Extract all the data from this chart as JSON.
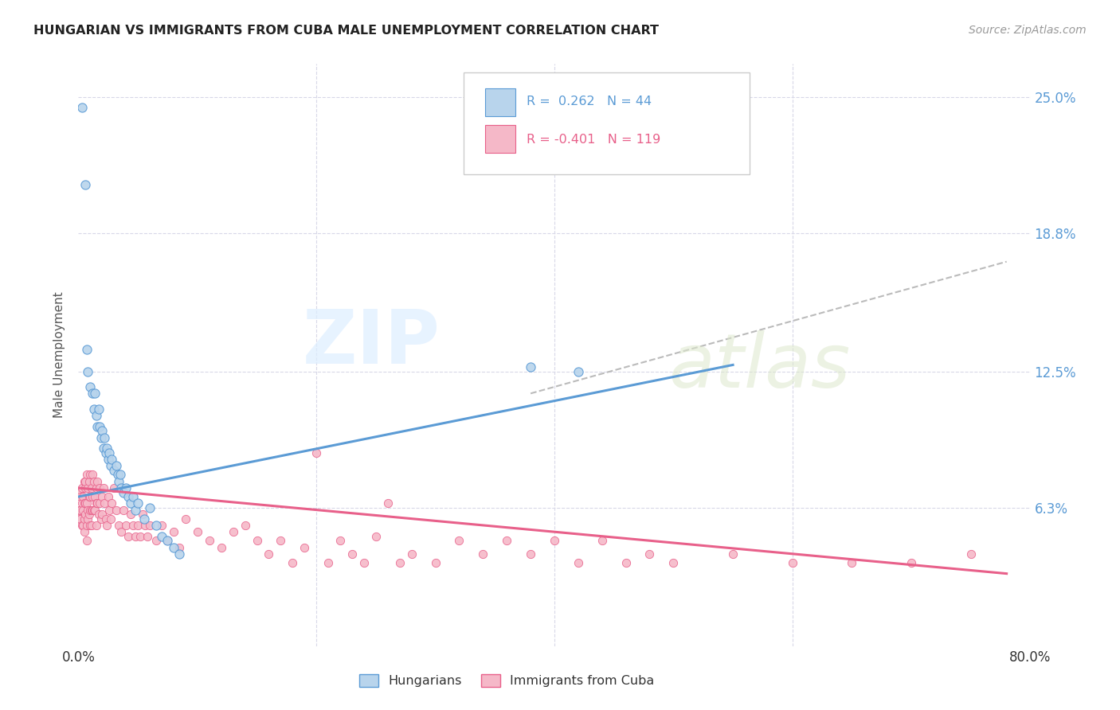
{
  "title": "HUNGARIAN VS IMMIGRANTS FROM CUBA MALE UNEMPLOYMENT CORRELATION CHART",
  "source": "Source: ZipAtlas.com",
  "ylabel": "Male Unemployment",
  "xlim": [
    0.0,
    0.8
  ],
  "ylim": [
    0.0,
    0.265
  ],
  "ytick_labels": [
    "6.3%",
    "12.5%",
    "18.8%",
    "25.0%"
  ],
  "ytick_values": [
    0.063,
    0.125,
    0.188,
    0.25
  ],
  "xtick_labels": [
    "0.0%",
    "80.0%"
  ],
  "xtick_values": [
    0.0,
    0.8
  ],
  "color_hungarian": "#b8d4ec",
  "color_cuba": "#f5b8c8",
  "color_line_hungarian": "#5b9bd5",
  "color_line_cuba": "#e8608a",
  "color_line_dashed": "#bbbbbb",
  "background_color": "#ffffff",
  "grid_color": "#d8d8e8",
  "hungarian_points": [
    [
      0.003,
      0.245
    ],
    [
      0.006,
      0.21
    ],
    [
      0.007,
      0.135
    ],
    [
      0.008,
      0.125
    ],
    [
      0.01,
      0.118
    ],
    [
      0.012,
      0.115
    ],
    [
      0.013,
      0.108
    ],
    [
      0.014,
      0.115
    ],
    [
      0.015,
      0.105
    ],
    [
      0.016,
      0.1
    ],
    [
      0.017,
      0.108
    ],
    [
      0.018,
      0.1
    ],
    [
      0.019,
      0.095
    ],
    [
      0.02,
      0.098
    ],
    [
      0.021,
      0.09
    ],
    [
      0.022,
      0.095
    ],
    [
      0.023,
      0.088
    ],
    [
      0.024,
      0.09
    ],
    [
      0.025,
      0.085
    ],
    [
      0.026,
      0.088
    ],
    [
      0.027,
      0.082
    ],
    [
      0.028,
      0.085
    ],
    [
      0.03,
      0.08
    ],
    [
      0.032,
      0.082
    ],
    [
      0.033,
      0.078
    ],
    [
      0.034,
      0.075
    ],
    [
      0.035,
      0.078
    ],
    [
      0.036,
      0.072
    ],
    [
      0.038,
      0.07
    ],
    [
      0.04,
      0.072
    ],
    [
      0.042,
      0.068
    ],
    [
      0.044,
      0.065
    ],
    [
      0.046,
      0.068
    ],
    [
      0.048,
      0.062
    ],
    [
      0.05,
      0.065
    ],
    [
      0.055,
      0.058
    ],
    [
      0.06,
      0.063
    ],
    [
      0.065,
      0.055
    ],
    [
      0.07,
      0.05
    ],
    [
      0.075,
      0.048
    ],
    [
      0.08,
      0.045
    ],
    [
      0.085,
      0.042
    ],
    [
      0.38,
      0.127
    ],
    [
      0.42,
      0.125
    ]
  ],
  "cuba_points": [
    [
      0.0,
      0.062
    ],
    [
      0.001,
      0.07
    ],
    [
      0.001,
      0.058
    ],
    [
      0.002,
      0.068
    ],
    [
      0.002,
      0.062
    ],
    [
      0.002,
      0.058
    ],
    [
      0.003,
      0.065
    ],
    [
      0.003,
      0.055
    ],
    [
      0.003,
      0.072
    ],
    [
      0.004,
      0.068
    ],
    [
      0.004,
      0.062
    ],
    [
      0.004,
      0.055
    ],
    [
      0.005,
      0.075
    ],
    [
      0.005,
      0.065
    ],
    [
      0.005,
      0.058
    ],
    [
      0.005,
      0.052
    ],
    [
      0.006,
      0.072
    ],
    [
      0.006,
      0.065
    ],
    [
      0.006,
      0.06
    ],
    [
      0.006,
      0.075
    ],
    [
      0.007,
      0.078
    ],
    [
      0.007,
      0.065
    ],
    [
      0.007,
      0.055
    ],
    [
      0.007,
      0.048
    ],
    [
      0.008,
      0.072
    ],
    [
      0.008,
      0.062
    ],
    [
      0.008,
      0.058
    ],
    [
      0.009,
      0.075
    ],
    [
      0.009,
      0.068
    ],
    [
      0.009,
      0.06
    ],
    [
      0.01,
      0.078
    ],
    [
      0.01,
      0.068
    ],
    [
      0.01,
      0.062
    ],
    [
      0.01,
      0.055
    ],
    [
      0.011,
      0.072
    ],
    [
      0.011,
      0.062
    ],
    [
      0.011,
      0.055
    ],
    [
      0.012,
      0.068
    ],
    [
      0.012,
      0.062
    ],
    [
      0.012,
      0.078
    ],
    [
      0.013,
      0.075
    ],
    [
      0.013,
      0.062
    ],
    [
      0.014,
      0.068
    ],
    [
      0.014,
      0.062
    ],
    [
      0.015,
      0.072
    ],
    [
      0.015,
      0.065
    ],
    [
      0.015,
      0.055
    ],
    [
      0.016,
      0.075
    ],
    [
      0.016,
      0.065
    ],
    [
      0.017,
      0.06
    ],
    [
      0.018,
      0.072
    ],
    [
      0.018,
      0.065
    ],
    [
      0.019,
      0.058
    ],
    [
      0.02,
      0.068
    ],
    [
      0.02,
      0.06
    ],
    [
      0.021,
      0.072
    ],
    [
      0.022,
      0.065
    ],
    [
      0.023,
      0.058
    ],
    [
      0.024,
      0.055
    ],
    [
      0.025,
      0.068
    ],
    [
      0.026,
      0.062
    ],
    [
      0.027,
      0.058
    ],
    [
      0.028,
      0.065
    ],
    [
      0.03,
      0.072
    ],
    [
      0.032,
      0.062
    ],
    [
      0.034,
      0.055
    ],
    [
      0.036,
      0.052
    ],
    [
      0.038,
      0.062
    ],
    [
      0.04,
      0.055
    ],
    [
      0.042,
      0.05
    ],
    [
      0.044,
      0.06
    ],
    [
      0.046,
      0.055
    ],
    [
      0.048,
      0.05
    ],
    [
      0.05,
      0.055
    ],
    [
      0.052,
      0.05
    ],
    [
      0.054,
      0.06
    ],
    [
      0.056,
      0.055
    ],
    [
      0.058,
      0.05
    ],
    [
      0.06,
      0.055
    ],
    [
      0.065,
      0.048
    ],
    [
      0.07,
      0.055
    ],
    [
      0.075,
      0.048
    ],
    [
      0.08,
      0.052
    ],
    [
      0.085,
      0.045
    ],
    [
      0.09,
      0.058
    ],
    [
      0.1,
      0.052
    ],
    [
      0.11,
      0.048
    ],
    [
      0.12,
      0.045
    ],
    [
      0.13,
      0.052
    ],
    [
      0.14,
      0.055
    ],
    [
      0.15,
      0.048
    ],
    [
      0.16,
      0.042
    ],
    [
      0.17,
      0.048
    ],
    [
      0.18,
      0.038
    ],
    [
      0.19,
      0.045
    ],
    [
      0.2,
      0.088
    ],
    [
      0.21,
      0.038
    ],
    [
      0.22,
      0.048
    ],
    [
      0.23,
      0.042
    ],
    [
      0.24,
      0.038
    ],
    [
      0.25,
      0.05
    ],
    [
      0.26,
      0.065
    ],
    [
      0.27,
      0.038
    ],
    [
      0.28,
      0.042
    ],
    [
      0.3,
      0.038
    ],
    [
      0.32,
      0.048
    ],
    [
      0.34,
      0.042
    ],
    [
      0.36,
      0.048
    ],
    [
      0.38,
      0.042
    ],
    [
      0.4,
      0.048
    ],
    [
      0.42,
      0.038
    ],
    [
      0.44,
      0.048
    ],
    [
      0.46,
      0.038
    ],
    [
      0.48,
      0.042
    ],
    [
      0.5,
      0.038
    ],
    [
      0.55,
      0.042
    ],
    [
      0.6,
      0.038
    ],
    [
      0.65,
      0.038
    ],
    [
      0.7,
      0.038
    ],
    [
      0.75,
      0.042
    ]
  ],
  "hungarian_line_x": [
    0.0,
    0.55
  ],
  "hungarian_line_y": [
    0.068,
    0.128
  ],
  "cuba_line_x": [
    0.0,
    0.78
  ],
  "cuba_line_y": [
    0.072,
    0.033
  ],
  "dashed_line_x": [
    0.38,
    0.78
  ],
  "dashed_line_y": [
    0.115,
    0.175
  ]
}
